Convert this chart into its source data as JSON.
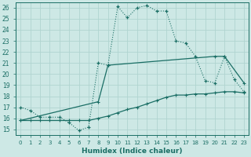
{
  "xlabel": "Humidex (Indice chaleur)",
  "xlim": [
    -0.5,
    23.5
  ],
  "ylim": [
    14.5,
    26.5
  ],
  "xticks": [
    0,
    1,
    2,
    3,
    4,
    5,
    6,
    7,
    8,
    9,
    10,
    11,
    12,
    13,
    14,
    15,
    16,
    17,
    18,
    19,
    20,
    21,
    22,
    23
  ],
  "yticks": [
    15,
    16,
    17,
    18,
    19,
    20,
    21,
    22,
    23,
    24,
    25,
    26
  ],
  "bg_color": "#cde8e5",
  "grid_color": "#b0d4d0",
  "line_color": "#1a6e65",
  "line1_x": [
    0,
    1,
    2,
    3,
    4,
    5,
    6,
    7,
    8,
    9,
    10,
    11,
    12,
    13,
    14,
    15,
    16,
    17,
    18,
    19,
    20,
    21,
    22,
    23
  ],
  "line1_y": [
    17.0,
    16.7,
    16.1,
    16.1,
    16.1,
    15.6,
    14.9,
    15.2,
    21.0,
    20.8,
    26.1,
    25.1,
    26.0,
    26.2,
    25.7,
    25.7,
    23.0,
    22.8,
    21.6,
    19.4,
    19.2,
    21.6,
    19.5,
    18.4
  ],
  "line2_x": [
    0,
    1,
    2,
    3,
    4,
    5,
    6,
    7,
    8,
    9,
    10,
    11,
    12,
    13,
    14,
    15,
    16,
    17,
    18,
    19,
    20,
    21,
    22,
    23
  ],
  "line2_y": [
    15.8,
    15.8,
    15.8,
    15.8,
    15.8,
    15.8,
    15.8,
    15.8,
    16.0,
    16.2,
    16.5,
    16.8,
    17.0,
    17.3,
    17.6,
    17.9,
    18.1,
    18.1,
    18.2,
    18.2,
    18.3,
    18.4,
    18.4,
    18.3
  ],
  "line3_x": [
    0,
    8,
    9,
    20,
    21,
    23
  ],
  "line3_y": [
    15.8,
    17.5,
    20.8,
    21.6,
    21.6,
    19.2
  ]
}
